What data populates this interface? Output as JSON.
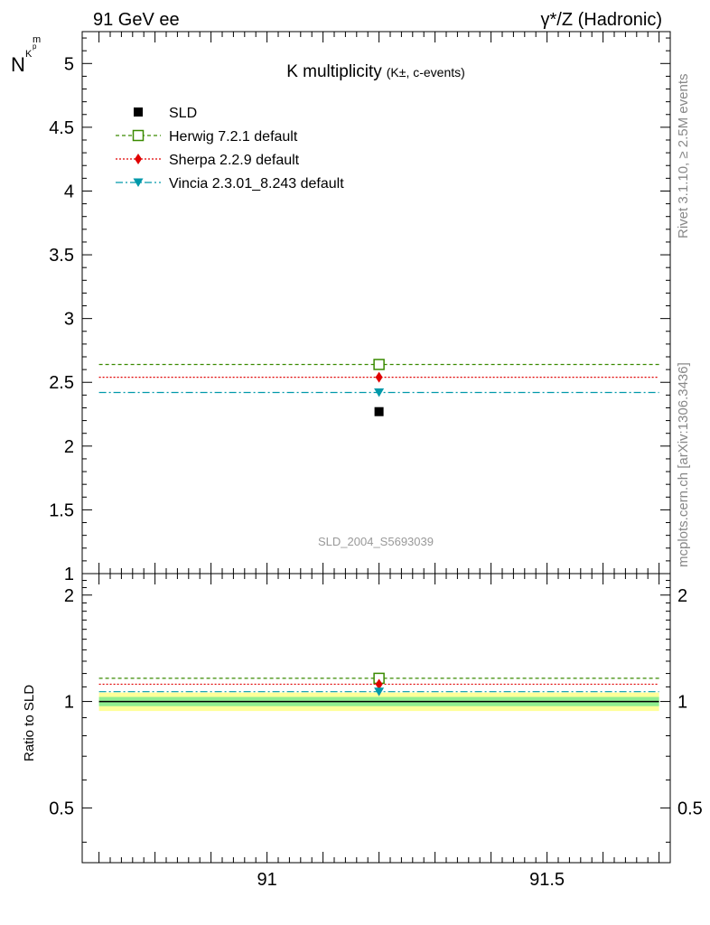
{
  "header": {
    "left": "91 GeV ee",
    "right": "γ*/Z (Hadronic)"
  },
  "side_labels": {
    "rivet": "Rivet 3.1.10, ≥ 2.5M events",
    "mcplots": "mcplots.cern.ch [arXiv:1306.3436]"
  },
  "main": {
    "title": "K multiplicity",
    "title_sub": "(K±, c-events)",
    "ylabel": "N",
    "ylabel_sub": "K",
    "ylabel_sup": "p",
    "ylabel_sub2": "m",
    "watermark": "SLD_2004_S5693039"
  },
  "ratio": {
    "ylabel": "Ratio to SLD"
  },
  "legend": [
    {
      "key": "sld",
      "label": "SLD"
    },
    {
      "key": "herwig",
      "label": "Herwig 7.2.1 default"
    },
    {
      "key": "sherpa",
      "label": "Sherpa 2.2.9 default"
    },
    {
      "key": "vincia",
      "label": "Vincia 2.3.01_8.243 default"
    }
  ],
  "colors": {
    "sld": "#000000",
    "herwig": "#3a8a00",
    "sherpa": "#e00000",
    "vincia": "#0099aa",
    "band_inner": "#90ee90",
    "band_outer": "#ffff99"
  },
  "chart_data": [
    {
      "type": "scatter",
      "xlim": [
        90.67,
        91.72
      ],
      "ylim": [
        1.0,
        5.25
      ],
      "yticks": [
        "1",
        "1.5",
        "2",
        "2.5",
        "3",
        "3.5",
        "4",
        "4.5",
        "5"
      ],
      "series": [
        {
          "name": "SLD",
          "x": 91.2,
          "y": 2.27
        },
        {
          "name": "Herwig 7.2.1 default",
          "x": 91.2,
          "y": 2.64,
          "xrange": [
            90.7,
            91.7
          ]
        },
        {
          "name": "Sherpa 2.2.9 default",
          "x": 91.2,
          "y": 2.54,
          "xrange": [
            90.7,
            91.7
          ]
        },
        {
          "name": "Vincia 2.3.01_8.243 default",
          "x": 91.2,
          "y": 2.42,
          "xrange": [
            90.7,
            91.7
          ]
        }
      ]
    },
    {
      "type": "scatter",
      "xlim": [
        90.67,
        91.72
      ],
      "ylim": [
        0.35,
        2.3
      ],
      "xticks": [
        "91",
        "91.5"
      ],
      "yticks": [
        "0.5",
        "1",
        "2"
      ],
      "band": {
        "inner": [
          0.97,
          1.03
        ],
        "outer": [
          0.94,
          1.06
        ]
      },
      "series": [
        {
          "name": "Herwig 7.2.1 default",
          "x": 91.2,
          "y": 1.163
        },
        {
          "name": "Sherpa 2.2.9 default",
          "x": 91.2,
          "y": 1.119
        },
        {
          "name": "Vincia 2.3.01_8.243 default",
          "x": 91.2,
          "y": 1.066
        }
      ]
    }
  ]
}
